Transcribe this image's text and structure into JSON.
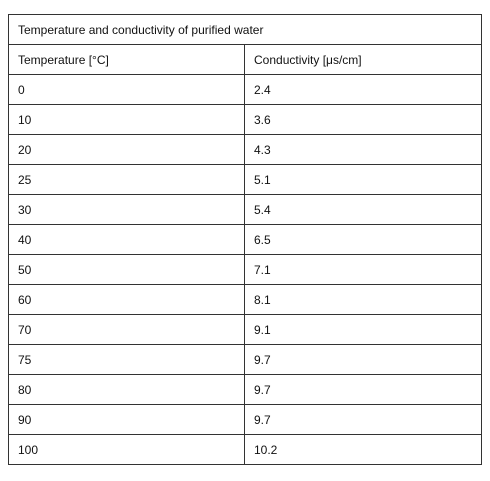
{
  "table": {
    "caption": "Temperature and conductivity of purified water",
    "headers": [
      "Temperature [°C]",
      "Conductivity [μs/cm]"
    ],
    "rows": [
      [
        "0",
        "2.4"
      ],
      [
        "10",
        "3.6"
      ],
      [
        "20",
        "4.3"
      ],
      [
        "25",
        "5.1"
      ],
      [
        "30",
        "5.4"
      ],
      [
        "40",
        "6.5"
      ],
      [
        "50",
        "7.1"
      ],
      [
        "60",
        "8.1"
      ],
      [
        "70",
        "9.1"
      ],
      [
        "75",
        "9.7"
      ],
      [
        "80",
        "9.7"
      ],
      [
        "90",
        "9.7"
      ],
      [
        "100",
        "10.2"
      ]
    ]
  }
}
